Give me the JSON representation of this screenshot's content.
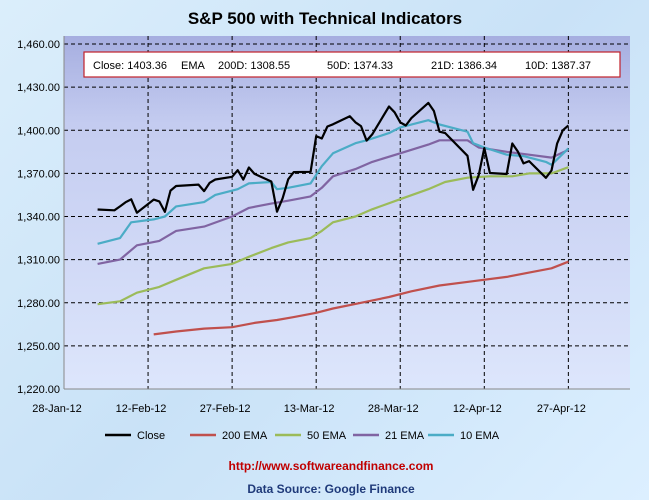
{
  "chart_data": {
    "type": "line",
    "title": "S&P 500 with Technical Indicators",
    "xlabel": "",
    "ylabel": "",
    "ylim": [
      1220,
      1460
    ],
    "yticks": [
      "1,220.00",
      "1,250.00",
      "1,280.00",
      "1,310.00",
      "1,340.00",
      "1,370.00",
      "1,400.00",
      "1,430.00",
      "1,460.00"
    ],
    "ytick_values": [
      1220,
      1250,
      1280,
      1310,
      1340,
      1370,
      1400,
      1430,
      1460
    ],
    "xlim": [
      "2012-01-28",
      "2012-05-08"
    ],
    "xticks": [
      "28-Jan-12",
      "12-Feb-12",
      "27-Feb-12",
      "13-Mar-12",
      "28-Mar-12",
      "12-Apr-12",
      "27-Apr-12"
    ],
    "xtick_dates": [
      "2012-01-28",
      "2012-02-12",
      "2012-02-27",
      "2012-03-13",
      "2012-03-28",
      "2012-04-12",
      "2012-04-27"
    ],
    "grid": true,
    "legend_position": "bottom",
    "summary": {
      "close": "Close: 1403.36",
      "ema": "EMA",
      "d200": "200D: 1308.55",
      "d50": "50D: 1374.33",
      "d21": "21D: 1386.34",
      "d10": "10D: 1387.37"
    },
    "series": [
      {
        "name": "Close",
        "color": "#000000",
        "points": [
          [
            "2012-02-03",
            1344.9
          ],
          [
            "2012-02-06",
            1344.33
          ],
          [
            "2012-02-07",
            1347.05
          ],
          [
            "2012-02-08",
            1349.96
          ],
          [
            "2012-02-09",
            1351.95
          ],
          [
            "2012-02-10",
            1342.64
          ],
          [
            "2012-02-13",
            1351.77
          ],
          [
            "2012-02-14",
            1350.5
          ],
          [
            "2012-02-15",
            1343.23
          ],
          [
            "2012-02-16",
            1358.04
          ],
          [
            "2012-02-17",
            1361.23
          ],
          [
            "2012-02-21",
            1362.21
          ],
          [
            "2012-02-22",
            1357.66
          ],
          [
            "2012-02-23",
            1363.46
          ],
          [
            "2012-02-24",
            1365.74
          ],
          [
            "2012-02-27",
            1367.59
          ],
          [
            "2012-02-28",
            1372.18
          ],
          [
            "2012-02-29",
            1365.68
          ],
          [
            "2012-03-01",
            1374.09
          ],
          [
            "2012-03-02",
            1369.63
          ],
          [
            "2012-03-05",
            1364.33
          ],
          [
            "2012-03-06",
            1343.36
          ],
          [
            "2012-03-07",
            1352.63
          ],
          [
            "2012-03-08",
            1365.91
          ],
          [
            "2012-03-09",
            1370.87
          ],
          [
            "2012-03-12",
            1371.09
          ],
          [
            "2012-03-13",
            1395.95
          ],
          [
            "2012-03-14",
            1394.28
          ],
          [
            "2012-03-15",
            1402.6
          ],
          [
            "2012-03-16",
            1404.17
          ],
          [
            "2012-03-19",
            1409.75
          ],
          [
            "2012-03-20",
            1405.52
          ],
          [
            "2012-03-21",
            1402.89
          ],
          [
            "2012-03-22",
            1392.78
          ],
          [
            "2012-03-23",
            1397.11
          ],
          [
            "2012-03-26",
            1416.51
          ],
          [
            "2012-03-27",
            1412.52
          ],
          [
            "2012-03-28",
            1405.54
          ],
          [
            "2012-03-29",
            1403.28
          ],
          [
            "2012-03-30",
            1408.47
          ],
          [
            "2012-04-02",
            1419.04
          ],
          [
            "2012-04-03",
            1413.38
          ],
          [
            "2012-04-04",
            1398.96
          ],
          [
            "2012-04-05",
            1398.08
          ],
          [
            "2012-04-09",
            1382.2
          ],
          [
            "2012-04-10",
            1358.59
          ],
          [
            "2012-04-11",
            1368.71
          ],
          [
            "2012-04-12",
            1387.57
          ],
          [
            "2012-04-13",
            1370.26
          ],
          [
            "2012-04-16",
            1369.57
          ],
          [
            "2012-04-17",
            1390.78
          ],
          [
            "2012-04-18",
            1385.14
          ],
          [
            "2012-04-19",
            1376.92
          ],
          [
            "2012-04-20",
            1378.53
          ],
          [
            "2012-04-23",
            1366.94
          ],
          [
            "2012-04-24",
            1371.97
          ],
          [
            "2012-04-25",
            1390.69
          ],
          [
            "2012-04-26",
            1399.98
          ],
          [
            "2012-04-27",
            1403.36
          ]
        ]
      },
      {
        "name": "200 EMA",
        "color": "#c0504d",
        "points": [
          [
            "2012-02-13",
            1258
          ],
          [
            "2012-02-17",
            1260
          ],
          [
            "2012-02-22",
            1262
          ],
          [
            "2012-02-27",
            1263
          ],
          [
            "2012-03-02",
            1266
          ],
          [
            "2012-03-06",
            1268
          ],
          [
            "2012-03-09",
            1270
          ],
          [
            "2012-03-13",
            1273
          ],
          [
            "2012-03-16",
            1276
          ],
          [
            "2012-03-21",
            1280
          ],
          [
            "2012-03-26",
            1284
          ],
          [
            "2012-03-30",
            1288
          ],
          [
            "2012-04-04",
            1292
          ],
          [
            "2012-04-10",
            1295
          ],
          [
            "2012-04-16",
            1298
          ],
          [
            "2012-04-20",
            1301
          ],
          [
            "2012-04-24",
            1304
          ],
          [
            "2012-04-27",
            1308.55
          ]
        ]
      },
      {
        "name": "50 EMA",
        "color": "#9bbb59",
        "points": [
          [
            "2012-02-03",
            1279
          ],
          [
            "2012-02-07",
            1281
          ],
          [
            "2012-02-10",
            1287
          ],
          [
            "2012-02-14",
            1291
          ],
          [
            "2012-02-17",
            1296
          ],
          [
            "2012-02-22",
            1304
          ],
          [
            "2012-02-27",
            1307
          ],
          [
            "2012-03-01",
            1312
          ],
          [
            "2012-03-05",
            1318
          ],
          [
            "2012-03-08",
            1322
          ],
          [
            "2012-03-12",
            1325
          ],
          [
            "2012-03-14",
            1330
          ],
          [
            "2012-03-16",
            1336
          ],
          [
            "2012-03-20",
            1340
          ],
          [
            "2012-03-23",
            1345
          ],
          [
            "2012-03-28",
            1352
          ],
          [
            "2012-04-02",
            1359
          ],
          [
            "2012-04-05",
            1364
          ],
          [
            "2012-04-09",
            1367
          ],
          [
            "2012-04-13",
            1368
          ],
          [
            "2012-04-17",
            1368
          ],
          [
            "2012-04-20",
            1370
          ],
          [
            "2012-04-24",
            1370
          ],
          [
            "2012-04-27",
            1374.33
          ]
        ]
      },
      {
        "name": "21 EMA",
        "color": "#8064a2",
        "points": [
          [
            "2012-02-03",
            1307
          ],
          [
            "2012-02-07",
            1310
          ],
          [
            "2012-02-10",
            1320
          ],
          [
            "2012-02-14",
            1323
          ],
          [
            "2012-02-17",
            1330
          ],
          [
            "2012-02-22",
            1333
          ],
          [
            "2012-02-27",
            1340
          ],
          [
            "2012-03-01",
            1346
          ],
          [
            "2012-03-05",
            1349
          ],
          [
            "2012-03-08",
            1351
          ],
          [
            "2012-03-12",
            1354
          ],
          [
            "2012-03-14",
            1360
          ],
          [
            "2012-03-16",
            1368
          ],
          [
            "2012-03-20",
            1373
          ],
          [
            "2012-03-23",
            1378
          ],
          [
            "2012-03-28",
            1384
          ],
          [
            "2012-04-02",
            1390
          ],
          [
            "2012-04-04",
            1393
          ],
          [
            "2012-04-09",
            1393
          ],
          [
            "2012-04-11",
            1388
          ],
          [
            "2012-04-16",
            1385
          ],
          [
            "2012-04-20",
            1383
          ],
          [
            "2012-04-24",
            1381
          ],
          [
            "2012-04-27",
            1386.34
          ]
        ]
      },
      {
        "name": "10 EMA",
        "color": "#4bacc6",
        "points": [
          [
            "2012-02-03",
            1321
          ],
          [
            "2012-02-07",
            1325
          ],
          [
            "2012-02-09",
            1336
          ],
          [
            "2012-02-13",
            1338
          ],
          [
            "2012-02-15",
            1340
          ],
          [
            "2012-02-17",
            1347
          ],
          [
            "2012-02-22",
            1350
          ],
          [
            "2012-02-24",
            1355
          ],
          [
            "2012-02-28",
            1359
          ],
          [
            "2012-03-01",
            1363
          ],
          [
            "2012-03-05",
            1364
          ],
          [
            "2012-03-06",
            1359
          ],
          [
            "2012-03-08",
            1360
          ],
          [
            "2012-03-12",
            1363
          ],
          [
            "2012-03-14",
            1375
          ],
          [
            "2012-03-16",
            1384
          ],
          [
            "2012-03-20",
            1391
          ],
          [
            "2012-03-22",
            1393
          ],
          [
            "2012-03-26",
            1398
          ],
          [
            "2012-03-28",
            1402
          ],
          [
            "2012-04-02",
            1407
          ],
          [
            "2012-04-04",
            1404
          ],
          [
            "2012-04-09",
            1399
          ],
          [
            "2012-04-10",
            1391
          ],
          [
            "2012-04-12",
            1388
          ],
          [
            "2012-04-16",
            1383
          ],
          [
            "2012-04-19",
            1382
          ],
          [
            "2012-04-23",
            1378
          ],
          [
            "2012-04-24",
            1376
          ],
          [
            "2012-04-27",
            1387.37
          ]
        ]
      }
    ]
  },
  "footer": {
    "url": "http://www.softwareandfinance.com",
    "source": "Data Source: Google Finance"
  }
}
